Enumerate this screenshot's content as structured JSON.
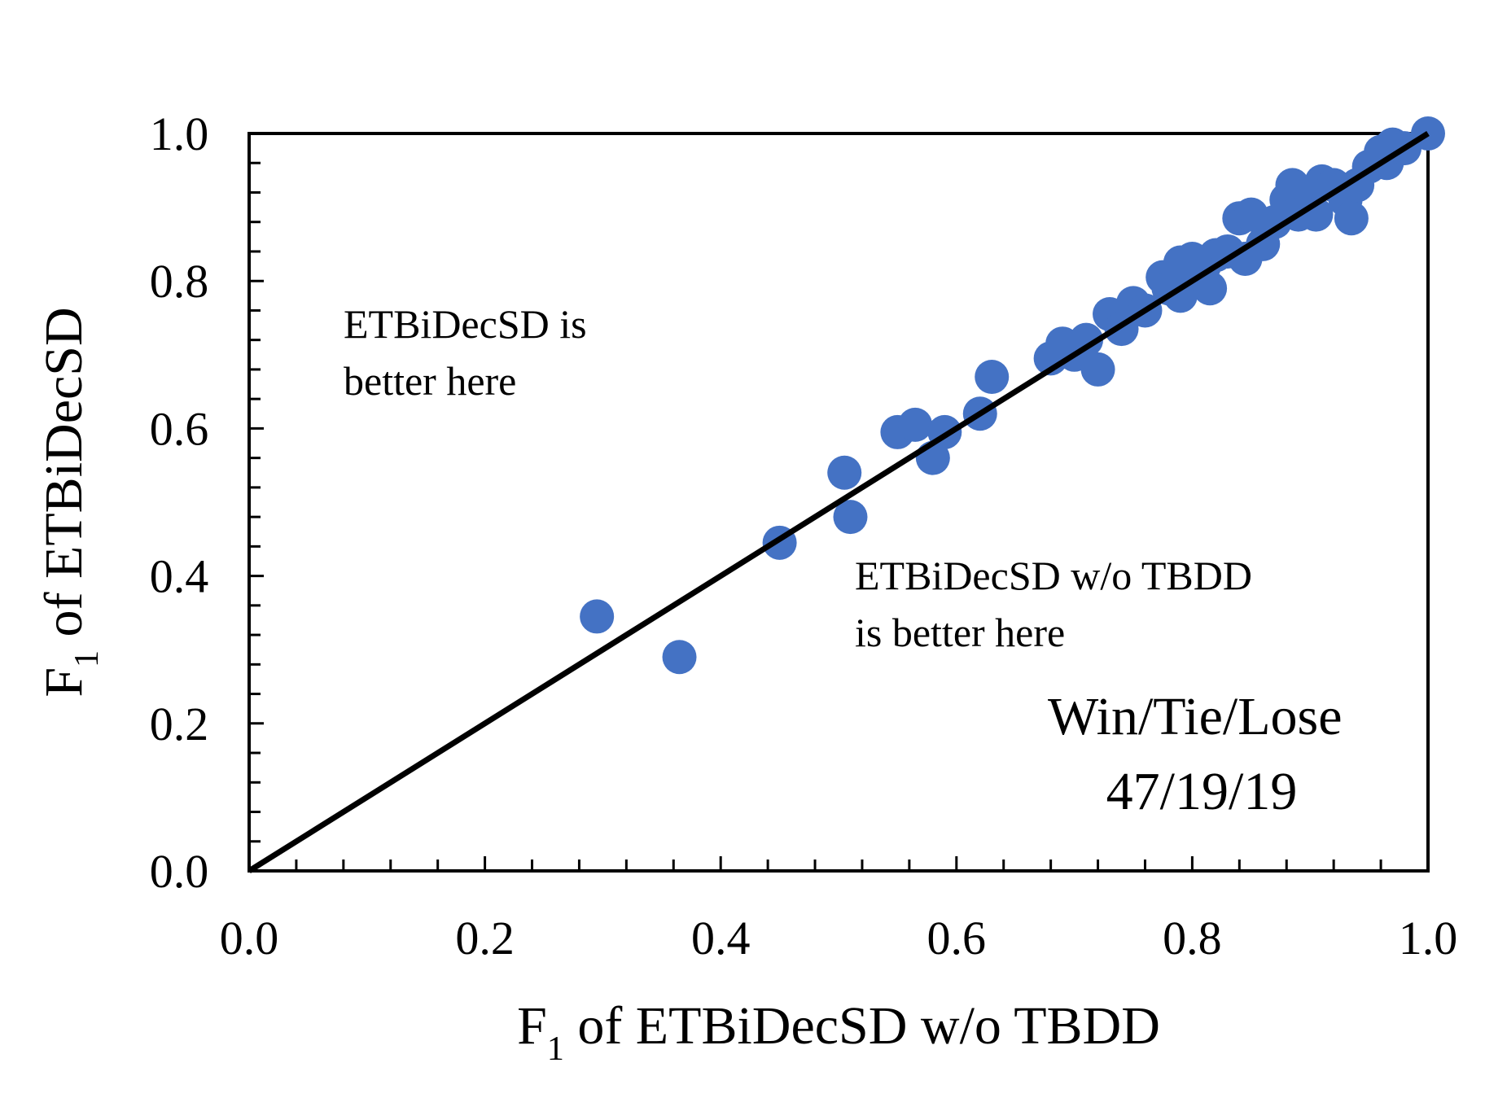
{
  "chart_data": {
    "type": "scatter",
    "xlabel": {
      "prefix": "F",
      "subscript": "1",
      "suffix": " of ETBiDecSD w/o TBDD"
    },
    "ylabel": {
      "prefix": "F",
      "subscript": "1",
      "suffix": " of ETBiDecSD"
    },
    "xlim": [
      0.0,
      1.0
    ],
    "ylim": [
      0.0,
      1.0
    ],
    "xticks": [
      "0.0",
      "0.2",
      "0.4",
      "0.6",
      "0.8",
      "1.0"
    ],
    "yticks": [
      "0.0",
      "0.2",
      "0.4",
      "0.6",
      "0.8",
      "1.0"
    ],
    "grid": false,
    "legend": "none",
    "marker_color": "#4472C4",
    "reference_line": {
      "from": [
        0,
        0
      ],
      "to": [
        1,
        1
      ],
      "color": "#000000"
    },
    "annotations": {
      "upper_left": [
        "ETBiDecSD is",
        "better here"
      ],
      "lower_right": [
        "ETBiDecSD w/o TBDD",
        "is better here"
      ],
      "result": [
        "Win/Tie/Lose",
        "47/19/19"
      ]
    },
    "series": [
      {
        "x": [
          0.295,
          0.365,
          0.45,
          0.505,
          0.51,
          0.55,
          0.565,
          0.58,
          0.59,
          0.62,
          0.63,
          0.68,
          0.69,
          0.7,
          0.71,
          0.72,
          0.73,
          0.74,
          0.75,
          0.76,
          0.775,
          0.78,
          0.79,
          0.79,
          0.8,
          0.805,
          0.81,
          0.815,
          0.82,
          0.83,
          0.84,
          0.845,
          0.85,
          0.86,
          0.87,
          0.88,
          0.885,
          0.89,
          0.9,
          0.905,
          0.91,
          0.92,
          0.93,
          0.935,
          0.94,
          0.95,
          0.96,
          0.965,
          0.97,
          0.98,
          1.0
        ],
        "y": [
          0.345,
          0.29,
          0.445,
          0.54,
          0.48,
          0.595,
          0.605,
          0.56,
          0.595,
          0.62,
          0.67,
          0.695,
          0.715,
          0.7,
          0.72,
          0.68,
          0.755,
          0.735,
          0.77,
          0.76,
          0.805,
          0.79,
          0.825,
          0.78,
          0.83,
          0.81,
          0.82,
          0.79,
          0.835,
          0.84,
          0.885,
          0.83,
          0.89,
          0.85,
          0.88,
          0.91,
          0.93,
          0.89,
          0.92,
          0.89,
          0.935,
          0.93,
          0.91,
          0.885,
          0.93,
          0.955,
          0.975,
          0.96,
          0.985,
          0.98,
          1.0
        ]
      }
    ]
  }
}
